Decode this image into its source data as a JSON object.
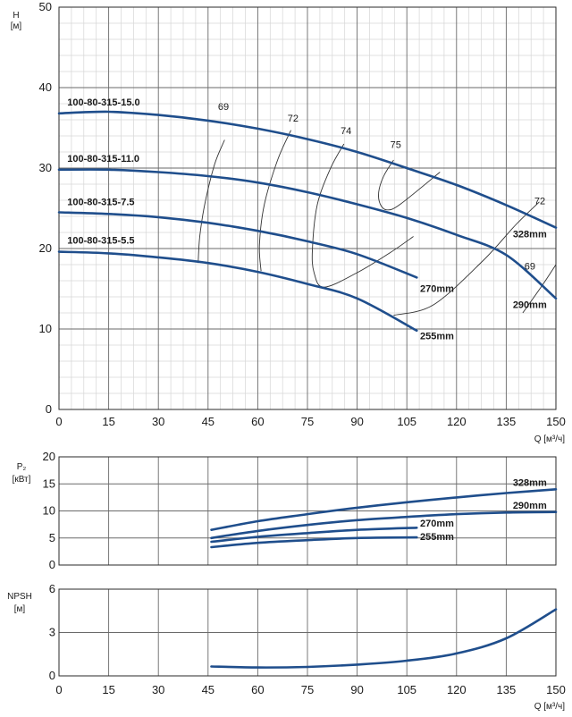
{
  "chart_data": [
    {
      "type": "line",
      "ylabel": "H",
      "yunit": "[м]",
      "xlabel": "Q [м³/ч]",
      "xlim": [
        0,
        150
      ],
      "ylim": [
        0,
        50
      ],
      "xticks": [
        "0",
        "15",
        "30",
        "45",
        "60",
        "75",
        "90",
        "105",
        "120",
        "135",
        "150"
      ],
      "yticks": [
        "0",
        "10",
        "20",
        "30",
        "40",
        "50"
      ],
      "grid": true,
      "series": [
        {
          "name": "100-80-315-15.0",
          "x": [
            0,
            15,
            30,
            45,
            60,
            75,
            90,
            105,
            120,
            135,
            150
          ],
          "y": [
            36.8,
            37.0,
            36.6,
            35.9,
            34.9,
            33.6,
            32.0,
            30.0,
            27.9,
            25.4,
            22.6
          ]
        },
        {
          "name": "100-80-315-11.0",
          "x": [
            0,
            15,
            30,
            45,
            60,
            75,
            90,
            105,
            120,
            135,
            150
          ],
          "y": [
            29.8,
            29.8,
            29.5,
            29.0,
            28.2,
            27.0,
            25.5,
            23.8,
            21.7,
            19.2,
            13.8
          ]
        },
        {
          "name": "100-80-315-7.5",
          "x": [
            0,
            15,
            30,
            45,
            60,
            75,
            90,
            108
          ],
          "y": [
            24.5,
            24.3,
            23.9,
            23.2,
            22.2,
            20.9,
            19.3,
            16.4
          ]
        },
        {
          "name": "100-80-315-5.5",
          "x": [
            0,
            15,
            30,
            45,
            60,
            75,
            90,
            108
          ],
          "y": [
            19.6,
            19.4,
            18.9,
            18.2,
            17.1,
            15.6,
            13.8,
            9.8
          ]
        }
      ],
      "diameters": [
        "328mm",
        "290mm",
        "270mm",
        "255mm"
      ],
      "efficiency_labels": [
        "69",
        "72",
        "74",
        "75",
        "72",
        "69"
      ]
    },
    {
      "type": "line",
      "ylabel": "P₂",
      "yunit": "[кВт]",
      "xlabel": "",
      "xlim": [
        0,
        150
      ],
      "ylim": [
        0,
        20
      ],
      "xticks": [
        "0",
        "15",
        "30",
        "45",
        "60",
        "75",
        "90",
        "105",
        "120",
        "135",
        "150"
      ],
      "yticks": [
        "0",
        "5",
        "10",
        "15",
        "20"
      ],
      "grid": true,
      "series": [
        {
          "name": "328mm",
          "x": [
            46,
            60,
            75,
            90,
            105,
            120,
            135,
            150
          ],
          "y": [
            6.5,
            8.1,
            9.4,
            10.6,
            11.6,
            12.5,
            13.3,
            14.0
          ]
        },
        {
          "name": "290mm",
          "x": [
            46,
            60,
            75,
            90,
            105,
            120,
            135,
            150
          ],
          "y": [
            5.0,
            6.3,
            7.4,
            8.3,
            8.9,
            9.4,
            9.7,
            9.8
          ]
        },
        {
          "name": "270mm",
          "x": [
            46,
            60,
            75,
            90,
            108
          ],
          "y": [
            4.3,
            5.2,
            5.9,
            6.5,
            6.9
          ]
        },
        {
          "name": "255mm",
          "x": [
            46,
            60,
            75,
            90,
            108
          ],
          "y": [
            3.3,
            4.1,
            4.6,
            5.0,
            5.1
          ]
        }
      ]
    },
    {
      "type": "line",
      "ylabel": "NPSH",
      "yunit": "[м]",
      "xlabel": "Q [м³/ч]",
      "xlim": [
        0,
        150
      ],
      "ylim": [
        0,
        6
      ],
      "xticks": [
        "0",
        "15",
        "30",
        "45",
        "60",
        "75",
        "90",
        "105",
        "120",
        "135",
        "150"
      ],
      "yticks": [
        "0",
        "3",
        "6"
      ],
      "grid": true,
      "series": [
        {
          "name": "",
          "x": [
            46,
            60,
            75,
            90,
            105,
            120,
            135,
            150
          ],
          "y": [
            0.65,
            0.58,
            0.62,
            0.78,
            1.05,
            1.55,
            2.6,
            4.6
          ]
        }
      ]
    }
  ]
}
